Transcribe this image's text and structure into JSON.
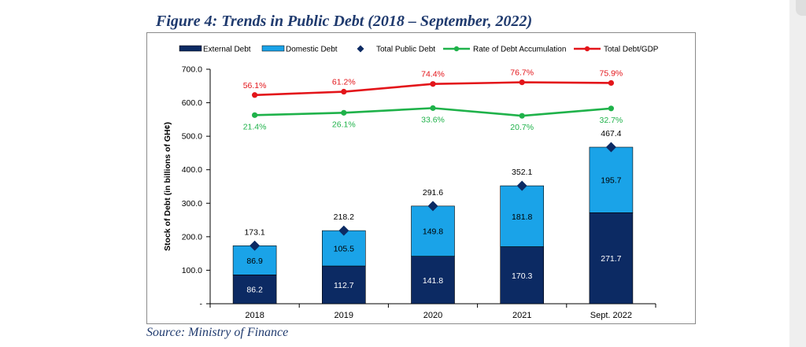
{
  "figure_title": "Figure 4: Trends in Public Debt (2018 – September, 2022)",
  "source_note": "Source: Ministry of Finance",
  "chart_data": {
    "type": "bar",
    "subtype": "stacked-bar-with-lines",
    "categories": [
      "2018",
      "2019",
      "2020",
      "2021",
      "Sept. 2022"
    ],
    "ylabel": "Stock of Debt (in billions of GH¢)",
    "xlabel": "",
    "ylim": [
      0,
      700
    ],
    "yticks": [
      0,
      100,
      200,
      300,
      400,
      500,
      600,
      700
    ],
    "ytick_labels": [
      "-",
      "100.0",
      "200.0",
      "300.0",
      "400.0",
      "500.0",
      "600.0",
      "700.0"
    ],
    "legend_position": "top",
    "series": [
      {
        "name": "External Debt",
        "kind": "bar",
        "color": "#0c2a63",
        "values": [
          86.2,
          112.7,
          141.8,
          170.3,
          271.7
        ],
        "labels": [
          "86.2",
          "112.7",
          "141.8",
          "170.3",
          "271.7"
        ]
      },
      {
        "name": "Domestic Debt",
        "kind": "bar",
        "color": "#1aa3e8",
        "values": [
          86.9,
          105.5,
          149.8,
          181.8,
          195.7
        ],
        "labels": [
          "86.9",
          "105.5",
          "149.8",
          "181.8",
          "195.7"
        ]
      },
      {
        "name": "Total Public Debt",
        "kind": "marker",
        "color": "#0c2a63",
        "values": [
          173.1,
          218.2,
          291.6,
          352.1,
          467.4
        ],
        "labels": [
          "173.1",
          "218.2",
          "291.6",
          "352.1",
          "467.4"
        ]
      },
      {
        "name": "Rate of Debt Accumulation",
        "kind": "line",
        "color": "#1fb24a",
        "plot_values": [
          563,
          570,
          584,
          561,
          583
        ],
        "labels": [
          "21.4%",
          "26.1%",
          "33.6%",
          "20.7%",
          "32.7%"
        ]
      },
      {
        "name": "Total Debt/GDP",
        "kind": "line",
        "color": "#e3151a",
        "plot_values": [
          623,
          633,
          656,
          661,
          659
        ],
        "labels": [
          "56.1%",
          "61.2%",
          "74.4%",
          "76.7%",
          "75.9%"
        ]
      }
    ]
  }
}
